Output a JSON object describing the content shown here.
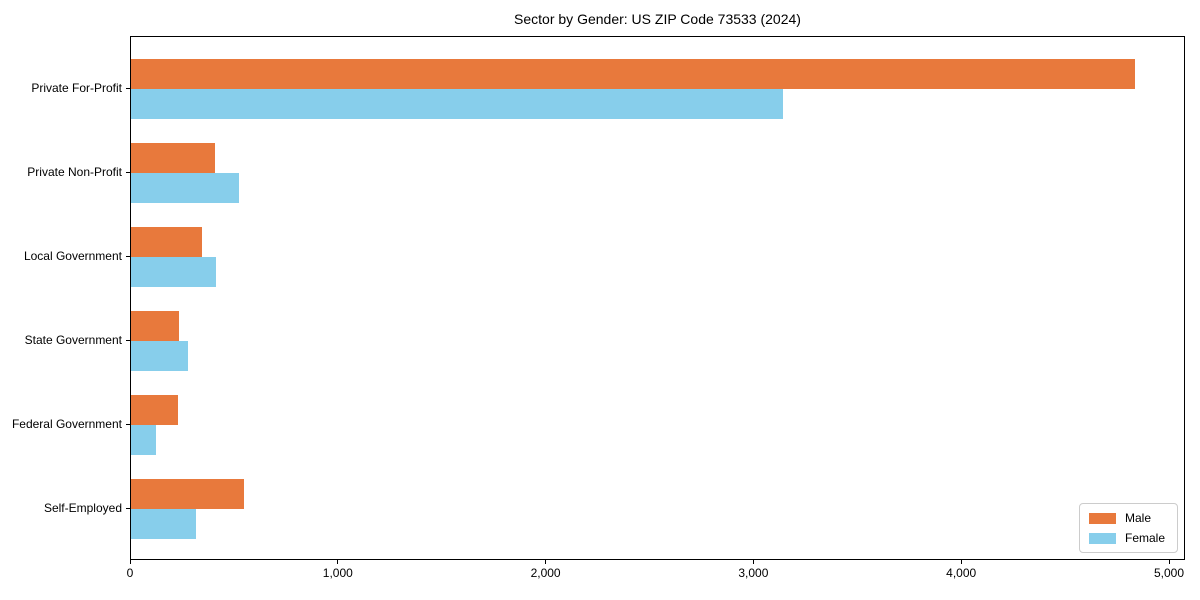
{
  "title": "Sector by Gender: US ZIP Code 73533 (2024)",
  "chart_data": {
    "type": "bar",
    "orientation": "horizontal",
    "title": "Sector by Gender: US ZIP Code 73533 (2024)",
    "categories": [
      "Private For-Profit",
      "Private Non-Profit",
      "Local Government",
      "State Government",
      "Federal Government",
      "Self-Employed"
    ],
    "series": [
      {
        "name": "Male",
        "color": "#E8793C",
        "values": [
          4830,
          405,
          340,
          230,
          225,
          545
        ]
      },
      {
        "name": "Female",
        "color": "#87CEEB",
        "values": [
          3140,
          520,
          410,
          275,
          120,
          315
        ]
      }
    ],
    "xlabel": "",
    "ylabel": "",
    "xlim": [
      0,
      5000
    ],
    "xticks": [
      0,
      1000,
      2000,
      3000,
      4000,
      5000
    ],
    "xtick_labels": [
      "0",
      "1,000",
      "2,000",
      "3,000",
      "4,000",
      "5,000"
    ],
    "grid": false,
    "legend_position": "lower right",
    "background_color": "#ffffff",
    "spine_color": "#000000"
  }
}
